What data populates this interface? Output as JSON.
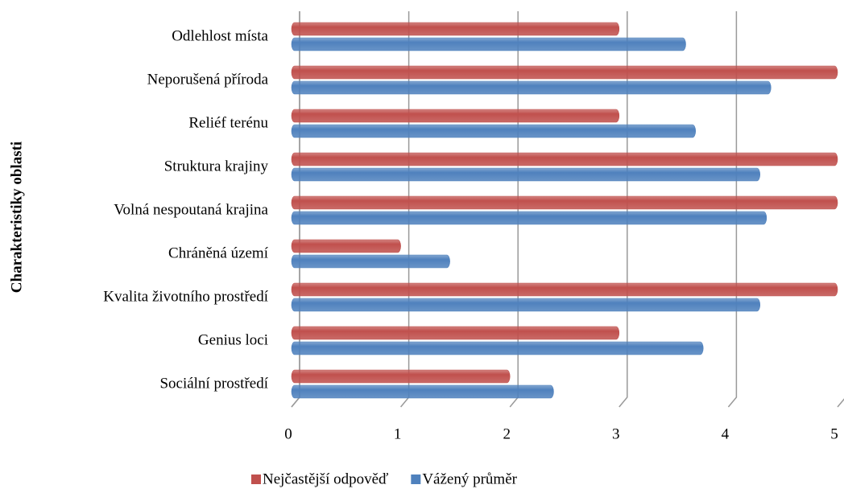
{
  "chart_data": {
    "type": "bar",
    "orientation": "horizontal",
    "y_label": "Charakteristiky oblasti",
    "categories": [
      "Odlehlost místa",
      "Neporušená příroda",
      "Reliéf terénu",
      "Struktura krajiny",
      "Volná nespoutaná krajina",
      "Chráněná území",
      "Kvalita životního prostředí",
      "Genius loci",
      "Sociální prostředí"
    ],
    "series": [
      {
        "name": "Nejčastější odpověď",
        "color": "#c0504d",
        "values": [
          3,
          5,
          3,
          5,
          5,
          1,
          5,
          3,
          2
        ]
      },
      {
        "name": "Vážený průměr",
        "color": "#4f81bd",
        "values": [
          3.61,
          4.39,
          3.7,
          4.29,
          4.35,
          1.45,
          4.29,
          3.77,
          2.4
        ]
      }
    ],
    "xlim": [
      0,
      5
    ],
    "xticks": [
      0,
      1,
      2,
      3,
      4,
      5
    ],
    "grid": true
  }
}
